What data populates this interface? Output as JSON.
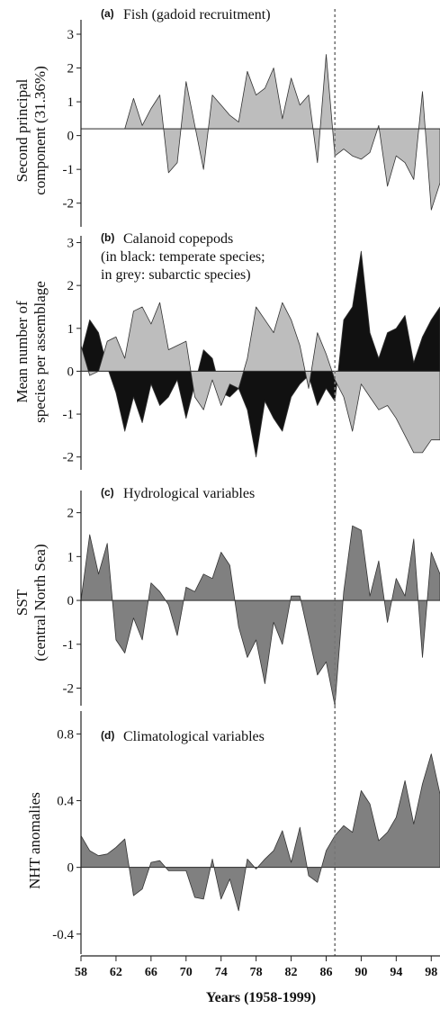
{
  "chart_data": [
    {
      "type": "area",
      "tag": "(a)",
      "title": "Fish (gadoid recruitment)",
      "title_lines": [],
      "ylabel": "Second principal",
      "ylabel2": "component (31.36%)",
      "ylim": [
        -2.7,
        3.0
      ],
      "baseline": 0.2,
      "yticks": [
        "3",
        "2",
        "1",
        "0",
        "-1",
        "-2"
      ],
      "ytick_values": [
        3,
        2,
        1,
        0,
        -1,
        -2
      ],
      "fill_color": "#bdbdbd",
      "series": [
        {
          "x": [
            1958,
            1959,
            1960,
            1961,
            1962,
            1963,
            1964,
            1965,
            1966,
            1967,
            1968,
            1969,
            1970,
            1971,
            1972,
            1973,
            1974,
            1975,
            1976,
            1977,
            1978,
            1979,
            1980,
            1981,
            1982,
            1983,
            1984,
            1985,
            1986,
            1987,
            1988,
            1989,
            1990,
            1991,
            1992,
            1993,
            1994,
            1995,
            1996,
            1997,
            1998,
            1999
          ],
          "values": [
            0.2,
            0.2,
            0.2,
            0.2,
            0.2,
            0.2,
            1.1,
            0.3,
            0.8,
            1.2,
            -1.1,
            -0.8,
            1.6,
            0.3,
            -1.0,
            1.2,
            0.9,
            0.6,
            0.4,
            1.9,
            1.2,
            1.4,
            2.0,
            0.5,
            1.7,
            0.9,
            1.2,
            -0.8,
            2.4,
            -0.6,
            -0.4,
            -0.6,
            -0.7,
            -0.5,
            0.3,
            -1.5,
            -0.6,
            -0.8,
            -1.3,
            1.3,
            -2.2,
            -1.4
          ]
        }
      ]
    },
    {
      "type": "area",
      "tag": "(b)",
      "title": "Calanoid copepods",
      "title_lines": [
        "(in black: temperate species;",
        "in grey: subarctic species)"
      ],
      "ylabel": "Mean number of",
      "ylabel2": "species per assemblage",
      "ylim": [
        -2.3,
        3.2
      ],
      "baseline": 0,
      "yticks": [
        "3",
        "2",
        "1",
        "0",
        "-1",
        "-2"
      ],
      "ytick_values": [
        3,
        2,
        1,
        0,
        -1,
        -2
      ],
      "series": [
        {
          "name": "temperate species",
          "color": "#111111",
          "x": [
            1958,
            1959,
            1960,
            1961,
            1962,
            1963,
            1964,
            1965,
            1966,
            1967,
            1968,
            1969,
            1970,
            1971,
            1972,
            1973,
            1974,
            1975,
            1976,
            1977,
            1978,
            1979,
            1980,
            1981,
            1982,
            1983,
            1984,
            1985,
            1986,
            1987,
            1988,
            1989,
            1990,
            1991,
            1992,
            1993,
            1994,
            1995,
            1996,
            1997,
            1998,
            1999
          ],
          "values": [
            0.4,
            1.2,
            0.9,
            0.1,
            -0.5,
            -1.4,
            -0.6,
            -1.2,
            -0.3,
            -0.8,
            -0.6,
            -0.2,
            -1.1,
            -0.3,
            0.5,
            0.3,
            -0.5,
            -0.6,
            -0.4,
            -0.9,
            -2.0,
            -0.7,
            -1.1,
            -1.4,
            -0.6,
            -0.3,
            -0.1,
            -0.8,
            -0.4,
            -0.7,
            1.2,
            1.5,
            2.8,
            0.9,
            0.3,
            0.9,
            1.0,
            1.3,
            0.2,
            0.8,
            1.2,
            1.5
          ]
        },
        {
          "name": "subarctic species",
          "color": "#bdbdbd",
          "x": [
            1958,
            1959,
            1960,
            1961,
            1962,
            1963,
            1964,
            1965,
            1966,
            1967,
            1968,
            1969,
            1970,
            1971,
            1972,
            1973,
            1974,
            1975,
            1976,
            1977,
            1978,
            1979,
            1980,
            1981,
            1982,
            1983,
            1984,
            1985,
            1986,
            1987,
            1988,
            1989,
            1990,
            1991,
            1992,
            1993,
            1994,
            1995,
            1996,
            1997,
            1998,
            1999
          ],
          "values": [
            0.6,
            -0.1,
            0.0,
            0.7,
            0.8,
            0.3,
            1.4,
            1.5,
            1.1,
            1.6,
            0.5,
            0.6,
            0.7,
            -0.6,
            -0.9,
            -0.2,
            -0.8,
            -0.3,
            -0.4,
            0.3,
            1.5,
            1.2,
            0.9,
            1.6,
            1.2,
            0.6,
            -0.4,
            0.9,
            0.4,
            -0.2,
            -0.6,
            -1.4,
            -0.3,
            -0.6,
            -0.9,
            -0.8,
            -1.1,
            -1.5,
            -1.9,
            -1.9,
            -1.6,
            -1.6
          ]
        }
      ]
    },
    {
      "type": "area",
      "tag": "(c)",
      "title": "Hydrological variables",
      "title_lines": [],
      "ylabel": "SST",
      "ylabel2": "(central North Sea)",
      "ylim": [
        -2.4,
        2.3
      ],
      "baseline": 0,
      "yticks": [
        "2",
        "1",
        "0",
        "-1",
        "-2"
      ],
      "ytick_values": [
        2,
        1,
        0,
        -1,
        -2
      ],
      "fill_color": "#808080",
      "series": [
        {
          "x": [
            1958,
            1959,
            1960,
            1961,
            1962,
            1963,
            1964,
            1965,
            1966,
            1967,
            1968,
            1969,
            1970,
            1971,
            1972,
            1973,
            1974,
            1975,
            1976,
            1977,
            1978,
            1979,
            1980,
            1981,
            1982,
            1983,
            1984,
            1985,
            1986,
            1987,
            1988,
            1989,
            1990,
            1991,
            1992,
            1993,
            1994,
            1995,
            1996,
            1997,
            1998,
            1999
          ],
          "values": [
            0.0,
            1.5,
            0.6,
            1.3,
            -0.9,
            -1.2,
            -0.4,
            -0.9,
            0.4,
            0.2,
            -0.1,
            -0.8,
            0.3,
            0.2,
            0.6,
            0.5,
            1.1,
            0.8,
            -0.6,
            -1.3,
            -0.9,
            -1.9,
            -0.5,
            -1.0,
            0.1,
            0.1,
            -0.8,
            -1.7,
            -1.4,
            -2.4,
            0.2,
            1.7,
            1.6,
            0.1,
            0.9,
            -0.5,
            0.5,
            0.1,
            1.4,
            -1.3,
            1.1,
            0.6
          ]
        }
      ]
    },
    {
      "type": "area",
      "tag": "(d)",
      "title": "Climatological  variables",
      "title_lines": [],
      "ylabel": "NHT anomalies",
      "ylabel2": "",
      "ylim": [
        -0.52,
        0.84
      ],
      "baseline": 0,
      "yticks": [
        "0.8",
        "0.4",
        "0",
        "-0.4"
      ],
      "ytick_values": [
        0.8,
        0.4,
        0,
        -0.4
      ],
      "fill_color": "#808080",
      "series": [
        {
          "x": [
            1958,
            1959,
            1960,
            1961,
            1962,
            1963,
            1964,
            1965,
            1966,
            1967,
            1968,
            1969,
            1970,
            1971,
            1972,
            1973,
            1974,
            1975,
            1976,
            1977,
            1978,
            1979,
            1980,
            1981,
            1982,
            1983,
            1984,
            1985,
            1986,
            1987,
            1988,
            1989,
            1990,
            1991,
            1992,
            1993,
            1994,
            1995,
            1996,
            1997,
            1998,
            1999
          ],
          "values": [
            0.19,
            0.1,
            0.07,
            0.08,
            0.12,
            0.17,
            -0.17,
            -0.13,
            0.03,
            0.04,
            -0.02,
            -0.02,
            -0.02,
            -0.18,
            -0.19,
            0.05,
            -0.19,
            -0.07,
            -0.26,
            0.05,
            -0.01,
            0.05,
            0.1,
            0.22,
            0.03,
            0.24,
            -0.05,
            -0.09,
            0.1,
            0.19,
            0.25,
            0.21,
            0.46,
            0.38,
            0.16,
            0.21,
            0.3,
            0.52,
            0.26,
            0.5,
            0.68,
            0.44
          ]
        }
      ]
    }
  ],
  "x_axis": {
    "xlim": [
      1958,
      1999
    ],
    "tick_values": [
      1958,
      1962,
      1966,
      1970,
      1974,
      1978,
      1982,
      1986,
      1990,
      1994,
      1998
    ],
    "tick_labels": [
      "58",
      "62",
      "66",
      "70",
      "74",
      "78",
      "82",
      "86",
      "90",
      "94",
      "98"
    ],
    "label": "Years (1958-1999)",
    "marker_year": 1987
  }
}
